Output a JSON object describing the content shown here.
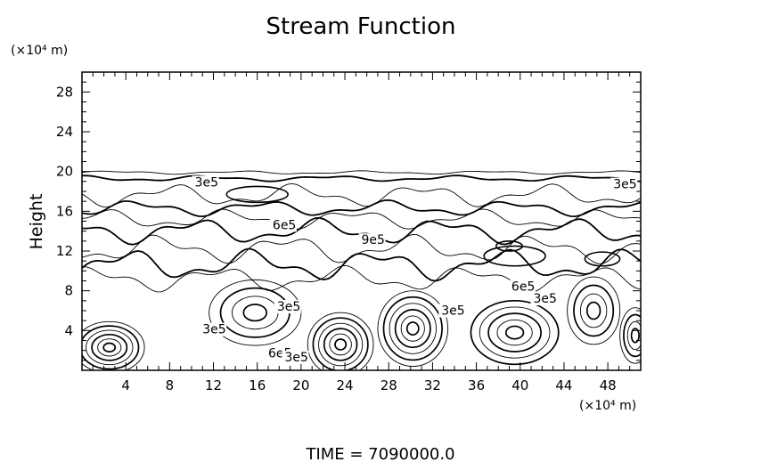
{
  "chart_data": {
    "type": "contour",
    "title": "Stream Function",
    "ylabel": "Height",
    "xlabel": "",
    "x_unit": "(×10⁴ m)",
    "y_unit": "(×10⁴ m)",
    "xlim": [
      0,
      51
    ],
    "ylim": [
      0,
      30
    ],
    "x_ticks": [
      4,
      8,
      12,
      16,
      20,
      24,
      28,
      32,
      36,
      40,
      44,
      48
    ],
    "y_ticks": [
      4,
      8,
      12,
      16,
      20,
      24,
      28
    ],
    "grid": false,
    "contour_labels": [
      {
        "text": "3e5",
        "x": 10.3,
        "y": 18.5
      },
      {
        "text": "6e5",
        "x": 17.4,
        "y": 14.2
      },
      {
        "text": "9e5",
        "x": 25.5,
        "y": 12.7
      },
      {
        "text": "3e5",
        "x": 48.5,
        "y": 18.3
      },
      {
        "text": "6e5",
        "x": 39.2,
        "y": 8.0
      },
      {
        "text": "3e5",
        "x": 41.2,
        "y": 6.8
      },
      {
        "text": "3e5",
        "x": 17.8,
        "y": 6.0
      },
      {
        "text": "3e5",
        "x": 11.0,
        "y": 3.7
      },
      {
        "text": "3e5",
        "x": 32.8,
        "y": 5.6
      },
      {
        "text": "6e5",
        "x": 17.0,
        "y": 1.3
      },
      {
        "text": "3e5",
        "x": 18.5,
        "y": 0.9
      }
    ],
    "vortices": [
      {
        "x": 2.5,
        "y": 2.3,
        "rx": 3.2,
        "ry": 2.6,
        "levels": 6
      },
      {
        "x": 15.8,
        "y": 5.8,
        "rx": 4.2,
        "ry": 3.3,
        "levels": 4
      },
      {
        "x": 23.6,
        "y": 2.6,
        "rx": 3.0,
        "ry": 3.2,
        "levels": 6
      },
      {
        "x": 30.2,
        "y": 4.2,
        "rx": 3.2,
        "ry": 3.8,
        "levels": 6
      },
      {
        "x": 39.5,
        "y": 3.8,
        "rx": 4.0,
        "ry": 3.2,
        "levels": 5
      },
      {
        "x": 46.7,
        "y": 6.0,
        "rx": 2.4,
        "ry": 3.4,
        "levels": 4
      },
      {
        "x": 50.5,
        "y": 3.5,
        "rx": 1.4,
        "ry": 2.8,
        "levels": 4
      }
    ],
    "layer_lines": [
      {
        "y": 19.9,
        "amp": 0.12,
        "heavy": false
      },
      {
        "y": 19.3,
        "amp": 0.2,
        "heavy": true
      },
      {
        "y": 17.6,
        "amp": 0.8,
        "heavy": false
      },
      {
        "y": 16.3,
        "amp": 0.55,
        "heavy": true
      },
      {
        "y": 15.2,
        "amp": 0.7,
        "heavy": false
      },
      {
        "y": 14.0,
        "amp": 0.9,
        "heavy": true
      },
      {
        "y": 12.2,
        "amp": 1.0,
        "heavy": false
      },
      {
        "y": 10.6,
        "amp": 1.1,
        "heavy": true
      },
      {
        "y": 9.2,
        "amp": 0.9,
        "heavy": false
      }
    ],
    "upper_cells": [
      {
        "x": 16.0,
        "y": 17.7,
        "rx": 2.8,
        "ry": 0.8
      },
      {
        "x": 39.5,
        "y": 11.5,
        "rx": 2.8,
        "ry": 1.0
      },
      {
        "x": 47.5,
        "y": 11.2,
        "rx": 1.6,
        "ry": 0.7
      },
      {
        "x": 39.0,
        "y": 12.5,
        "rx": 1.2,
        "ry": 0.5
      }
    ]
  },
  "footer": {
    "time_label": "TIME  =  7090000.0"
  }
}
